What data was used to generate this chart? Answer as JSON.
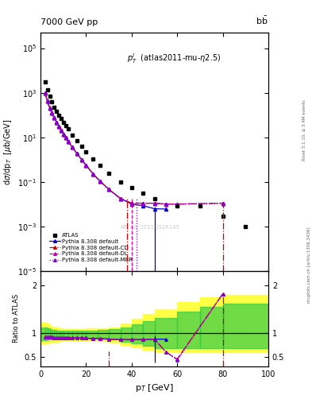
{
  "title_left": "7000 GeV pp",
  "title_right": "b$\\bar{b}$",
  "annotation": "$p_T^l$  (atlas2011-mu-$\\eta$2.5)",
  "watermark": "ATLAS_2011_I526145",
  "ylabel_main": "d$\\sigma$/dp$_T$  [$\\mu$b/GeV]",
  "ylabel_ratio": "Ratio to ATLAS",
  "xlabel": "p$_T$ [GeV]",
  "right_label": "Rivet 3.1.10, ≥ 3.4M events",
  "right_label2": "mcplots.cern.ch [arXiv:1306.3436]",
  "atlas_x": [
    2,
    3,
    4,
    5,
    6,
    7,
    8,
    9,
    10,
    11,
    12,
    14,
    16,
    18,
    20,
    23,
    26,
    30,
    35,
    40,
    45,
    50,
    60,
    70,
    80,
    90
  ],
  "atlas_y": [
    3000,
    1300,
    700,
    390,
    230,
    150,
    100,
    70,
    48,
    33,
    24,
    12.5,
    6.8,
    3.9,
    2.3,
    1.1,
    0.55,
    0.25,
    0.1,
    0.055,
    0.03,
    0.018,
    0.0085,
    0.0085,
    0.0028,
    0.001
  ],
  "pythia_default_x": [
    2,
    3,
    4,
    5,
    6,
    7,
    8,
    9,
    10,
    11,
    12,
    14,
    16,
    18,
    20,
    23,
    26,
    30,
    35,
    40,
    45,
    50,
    55
  ],
  "pythia_default_y": [
    950,
    410,
    210,
    125,
    75,
    48,
    31,
    21,
    14,
    9.8,
    6.7,
    3.5,
    1.85,
    1.0,
    0.55,
    0.23,
    0.11,
    0.046,
    0.018,
    0.01,
    0.0085,
    0.0062,
    0.006
  ],
  "pythia_cd_x": [
    2,
    3,
    4,
    5,
    6,
    7,
    8,
    9,
    10,
    11,
    12,
    14,
    16,
    18,
    20,
    23,
    26,
    30,
    35,
    40,
    45,
    50,
    55,
    60,
    80
  ],
  "pythia_cd_y": [
    950,
    410,
    210,
    125,
    75,
    48,
    31,
    21,
    14,
    9.8,
    6.7,
    3.5,
    1.85,
    1.0,
    0.55,
    0.23,
    0.11,
    0.046,
    0.018,
    0.011,
    0.011,
    0.011,
    0.01,
    0.01,
    0.011
  ],
  "pythia_dl_x": [
    2,
    3,
    4,
    5,
    6,
    7,
    8,
    9,
    10,
    11,
    12,
    14,
    16,
    18,
    20,
    23,
    26,
    30,
    35,
    40,
    45,
    50,
    55,
    60,
    80
  ],
  "pythia_dl_y": [
    950,
    410,
    210,
    125,
    75,
    48,
    31,
    21,
    14,
    9.8,
    6.7,
    3.5,
    1.85,
    1.0,
    0.55,
    0.23,
    0.11,
    0.046,
    0.018,
    0.011,
    0.011,
    0.011,
    0.01,
    0.01,
    0.011
  ],
  "pythia_mbr_x": [
    2,
    3,
    4,
    5,
    6,
    7,
    8,
    9,
    10,
    11,
    12,
    14,
    16,
    18,
    20,
    23,
    26,
    30,
    35,
    40,
    45,
    50,
    55,
    60,
    80
  ],
  "pythia_mbr_y": [
    950,
    410,
    210,
    125,
    75,
    48,
    31,
    21,
    14,
    9.8,
    6.7,
    3.5,
    1.85,
    1.0,
    0.55,
    0.23,
    0.11,
    0.046,
    0.018,
    0.011,
    0.011,
    0.011,
    0.01,
    0.01,
    0.011
  ],
  "ratio_yellow_edges": [
    0,
    2,
    3,
    4,
    5,
    6,
    7,
    8,
    9,
    10,
    12,
    14,
    16,
    18,
    20,
    25,
    30,
    35,
    40,
    45,
    50,
    60,
    70,
    80,
    100
  ],
  "ratio_yellow_low": [
    0.78,
    0.78,
    0.8,
    0.8,
    0.8,
    0.82,
    0.82,
    0.83,
    0.84,
    0.84,
    0.85,
    0.85,
    0.85,
    0.85,
    0.84,
    0.83,
    0.8,
    0.75,
    0.7,
    0.65,
    0.6,
    0.6,
    0.6,
    0.6,
    0.6
  ],
  "ratio_yellow_high": [
    1.22,
    1.22,
    1.18,
    1.15,
    1.13,
    1.12,
    1.11,
    1.1,
    1.09,
    1.08,
    1.08,
    1.08,
    1.08,
    1.08,
    1.09,
    1.1,
    1.12,
    1.2,
    1.3,
    1.4,
    1.5,
    1.65,
    1.75,
    1.8,
    1.85
  ],
  "ratio_green_edges": [
    0,
    2,
    3,
    4,
    5,
    6,
    7,
    8,
    9,
    10,
    12,
    14,
    16,
    18,
    20,
    25,
    30,
    35,
    40,
    45,
    50,
    60,
    70,
    80,
    100
  ],
  "ratio_green_low": [
    0.85,
    0.85,
    0.87,
    0.87,
    0.87,
    0.88,
    0.88,
    0.89,
    0.9,
    0.9,
    0.9,
    0.9,
    0.9,
    0.9,
    0.89,
    0.88,
    0.86,
    0.82,
    0.78,
    0.73,
    0.68,
    0.68,
    0.68,
    0.68,
    0.68
  ],
  "ratio_green_high": [
    1.12,
    1.12,
    1.1,
    1.08,
    1.07,
    1.06,
    1.05,
    1.05,
    1.04,
    1.04,
    1.04,
    1.04,
    1.04,
    1.04,
    1.05,
    1.06,
    1.08,
    1.12,
    1.18,
    1.25,
    1.32,
    1.45,
    1.55,
    1.62,
    1.65
  ],
  "ratio_default_x": [
    2,
    3,
    4,
    5,
    6,
    7,
    8,
    9,
    10,
    11,
    12,
    14,
    16,
    18,
    20,
    23,
    26,
    30,
    35,
    40,
    45,
    50,
    55
  ],
  "ratio_default_y": [
    0.92,
    0.92,
    0.91,
    0.91,
    0.9,
    0.9,
    0.9,
    0.9,
    0.9,
    0.9,
    0.9,
    0.9,
    0.9,
    0.9,
    0.89,
    0.88,
    0.88,
    0.87,
    0.86,
    0.86,
    0.86,
    0.87,
    0.87
  ],
  "ratio_default_vline_x": 50,
  "ratio_default_vline_y": [
    0.38,
    0.95
  ],
  "ratio_cd_x": [
    2,
    3,
    4,
    5,
    6,
    7,
    8,
    9,
    10,
    11,
    12,
    14,
    16,
    18,
    20,
    23,
    26,
    30,
    35,
    40,
    45,
    50,
    55,
    60,
    80
  ],
  "ratio_cd_y": [
    0.92,
    0.92,
    0.91,
    0.91,
    0.9,
    0.9,
    0.9,
    0.9,
    0.9,
    0.9,
    0.9,
    0.9,
    0.9,
    0.9,
    0.89,
    0.88,
    0.88,
    0.87,
    0.86,
    0.86,
    0.86,
    0.87,
    0.6,
    0.45,
    1.82
  ],
  "ratio_cd_vline1_x": 30,
  "ratio_cd_vline1_y": [
    0.3,
    0.62
  ],
  "ratio_cd_vline2_x": 80,
  "ratio_cd_vline2_y": [
    0.3,
    1.82
  ],
  "ratio_dl_x": [
    2,
    3,
    4,
    5,
    6,
    7,
    8,
    9,
    10,
    11,
    12,
    14,
    16,
    18,
    20,
    23,
    26,
    30,
    35,
    40,
    45,
    50,
    55,
    60,
    80
  ],
  "ratio_dl_y": [
    0.92,
    0.92,
    0.91,
    0.91,
    0.9,
    0.9,
    0.9,
    0.9,
    0.9,
    0.9,
    0.9,
    0.9,
    0.9,
    0.9,
    0.89,
    0.88,
    0.88,
    0.87,
    0.86,
    0.86,
    0.86,
    0.87,
    0.6,
    0.45,
    1.82
  ],
  "ratio_mbr_x": [
    2,
    3,
    4,
    5,
    6,
    7,
    8,
    9,
    10,
    11,
    12,
    14,
    16,
    18,
    20,
    23,
    26,
    30,
    35,
    40,
    45,
    50,
    55,
    60,
    80
  ],
  "ratio_mbr_y": [
    0.92,
    0.92,
    0.91,
    0.91,
    0.9,
    0.9,
    0.9,
    0.9,
    0.9,
    0.9,
    0.9,
    0.9,
    0.9,
    0.9,
    0.89,
    0.88,
    0.88,
    0.87,
    0.86,
    0.86,
    0.86,
    0.87,
    0.6,
    0.43,
    1.82
  ],
  "colors": {
    "atlas": "#000000",
    "pythia_default": "#0000cc",
    "pythia_cd": "#cc0000",
    "pythia_dl": "#cc00aa",
    "pythia_mbr": "#8800cc",
    "green_band": "#33cc44",
    "yellow_band": "#ffff44"
  },
  "xlim": [
    0,
    100
  ],
  "ylim_main": [
    1e-05,
    500000.0
  ],
  "ylim_ratio": [
    0.3,
    2.3
  ]
}
